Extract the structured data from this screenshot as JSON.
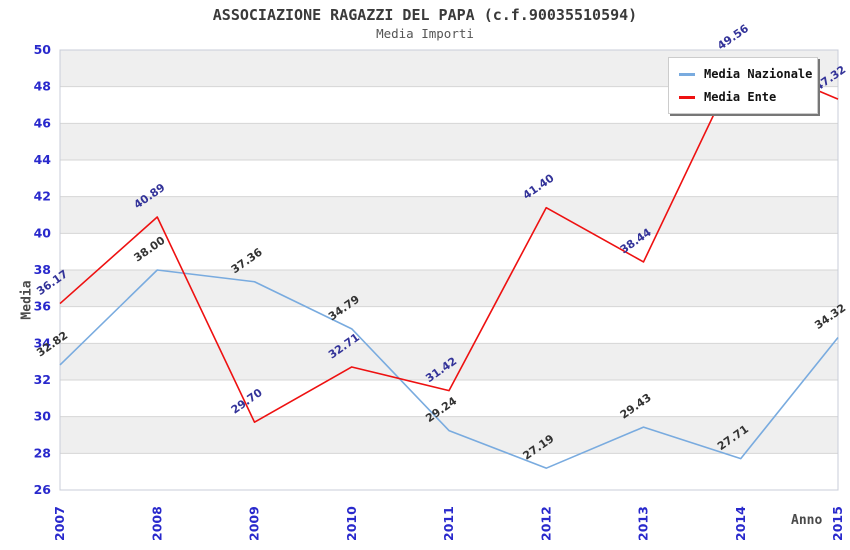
{
  "chart_data": {
    "type": "line",
    "title": "ASSOCIAZIONE RAGAZZI DEL PAPA (c.f.90035510594)",
    "subtitle": "Media Importi",
    "xlabel": "Anno",
    "ylabel": "Media",
    "x": [
      "2007",
      "2008",
      "2009",
      "2010",
      "2011",
      "2012",
      "2013",
      "2014",
      "2015"
    ],
    "ylim": [
      26,
      50
    ],
    "ytick_step": 2,
    "grid": true,
    "legend_position": "top-right",
    "band_color": "#efefef",
    "grid_color": "#d6d6d6",
    "border_color": "#c8cdd8",
    "tick_label_color": "#2929cc",
    "series": [
      {
        "name": "Media Nazionale",
        "color": "#79abdf",
        "label_color": "#333333",
        "values": [
          32.82,
          38.0,
          37.36,
          34.79,
          29.24,
          27.19,
          29.43,
          27.71,
          34.32
        ]
      },
      {
        "name": "Media Ente",
        "color": "#ee1111",
        "label_color": "#333399",
        "values": [
          36.17,
          40.89,
          29.7,
          32.71,
          31.42,
          41.4,
          38.44,
          49.56,
          47.32
        ]
      }
    ]
  }
}
